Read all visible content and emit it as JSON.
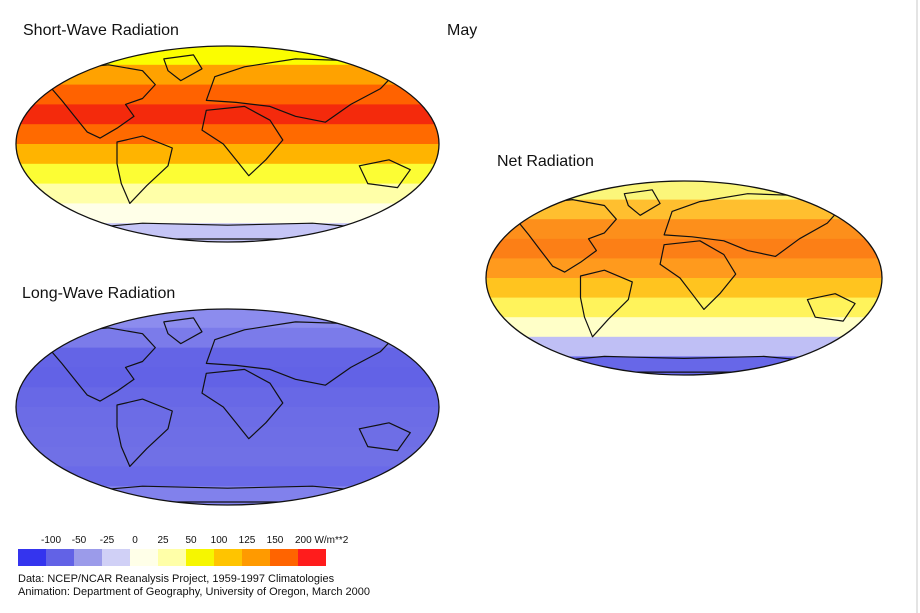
{
  "month": "May",
  "maps": {
    "shortwave": {
      "title": "Short-Wave Radiation",
      "bands": [
        "#fbfd00",
        "#ffa200",
        "#ff6200",
        "#f42a0c",
        "#ff6a00",
        "#ffb400",
        "#fcfd34",
        "#ffffa8",
        "#ffffe8",
        "#c5c5f6"
      ]
    },
    "longwave": {
      "title": "Long-Wave Radiation",
      "bands": [
        "#8c8cee",
        "#7b7bea",
        "#6464e6",
        "#6262e6",
        "#6868e6",
        "#6c6ce6",
        "#6e6ee6",
        "#7070e6",
        "#6a6ae8",
        "#8181ec"
      ]
    },
    "net": {
      "title": "Net Radiation",
      "bands": [
        "#fbf67a",
        "#ffbf2f",
        "#fd8f1b",
        "#fc7f16",
        "#ff9a1d",
        "#ffc41f",
        "#fff35b",
        "#ffffc8",
        "#bfbff5",
        "#6767e8"
      ]
    }
  },
  "legend": {
    "unit": "W/m**2",
    "labels": [
      "-100",
      "-50",
      "-25",
      "0",
      "25",
      "50",
      "100",
      "125",
      "150",
      "200"
    ],
    "colors": [
      "#3434ee",
      "#6262e6",
      "#9b9bea",
      "#d0d0f6",
      "#ffffe8",
      "#ffffa8",
      "#f6f600",
      "#ffc400",
      "#ff9a00",
      "#ff6400",
      "#ff1c1c"
    ]
  },
  "credits": {
    "data": "Data:  NCEP/NCAR Reanalysis Project, 1959-1997 Climatologies",
    "animation": "Animation:  Department of Geography, University of Oregon, March 2000"
  }
}
